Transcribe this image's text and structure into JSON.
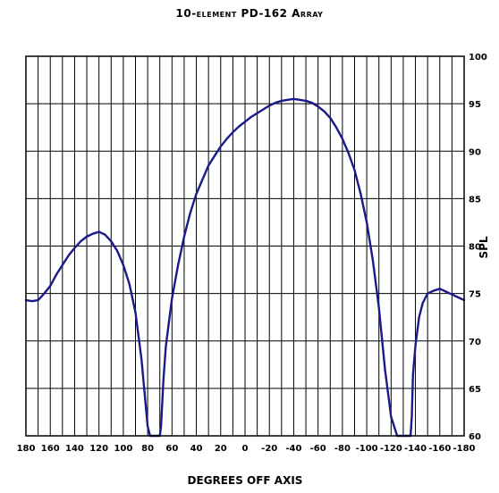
{
  "chart_data": {
    "type": "line",
    "title": "10-element PD-162 Array",
    "xlabel": "DEGREES OFF AXIS",
    "ylabel": "SPL",
    "x_tick_labels": [
      "180",
      "160",
      "140",
      "120",
      "100",
      "80",
      "60",
      "40",
      "20",
      "0",
      "-20",
      "-40",
      "-60",
      "-80",
      "-100",
      "-120",
      "-140",
      "-160",
      "-180"
    ],
    "y_tick_labels": [
      "60",
      "65",
      "70",
      "75",
      "80",
      "85",
      "90",
      "95",
      "100"
    ],
    "xlim": [
      180,
      -180
    ],
    "ylim": [
      60,
      100
    ],
    "x_grid_step": 10,
    "y_grid_step": 5,
    "grid": true,
    "line_color": "#1a1a8c",
    "series": [
      {
        "x": [
          180,
          175,
          170,
          165,
          160,
          155,
          150,
          145,
          140,
          135,
          130,
          125,
          120,
          115,
          110,
          105,
          100,
          95,
          90,
          85,
          80,
          78,
          76,
          74,
          73,
          72,
          71,
          70,
          69,
          67,
          65,
          62,
          60,
          55,
          50,
          45,
          40,
          35,
          30,
          25,
          20,
          15,
          10,
          5,
          0,
          -5,
          -10,
          -15,
          -20,
          -25,
          -30,
          -35,
          -40,
          -45,
          -50,
          -55,
          -60,
          -65,
          -70,
          -75,
          -80,
          -85,
          -90,
          -95,
          -100,
          -105,
          -110,
          -115,
          -120,
          -125,
          -128,
          -130,
          -132,
          -133,
          -134,
          -135,
          -136,
          -137,
          -138,
          -140,
          -143,
          -146,
          -150,
          -155,
          -160,
          -165,
          -170,
          -175,
          -180
        ],
        "y": [
          74.3,
          74.2,
          74.3,
          75.0,
          75.8,
          77.0,
          78.0,
          79.0,
          79.8,
          80.5,
          81.0,
          81.3,
          81.5,
          81.2,
          80.5,
          79.5,
          78.0,
          76.0,
          73.0,
          68.0,
          61.0,
          60.0,
          60.0,
          60.0,
          60.0,
          60.0,
          60.0,
          60.0,
          61.0,
          66.0,
          69.5,
          72.5,
          74.5,
          78.0,
          81.0,
          83.5,
          85.5,
          87.0,
          88.5,
          89.5,
          90.5,
          91.3,
          92.0,
          92.6,
          93.1,
          93.6,
          94.0,
          94.4,
          94.8,
          95.1,
          95.3,
          95.4,
          95.5,
          95.4,
          95.3,
          95.1,
          94.7,
          94.2,
          93.5,
          92.5,
          91.3,
          89.8,
          88.0,
          85.5,
          82.5,
          78.5,
          73.5,
          67.0,
          62.0,
          60.0,
          60.0,
          60.0,
          60.0,
          60.0,
          60.0,
          60.0,
          60.0,
          62.0,
          66.5,
          69.5,
          72.5,
          74.0,
          75.0,
          75.3,
          75.5,
          75.2,
          74.9,
          74.6,
          74.3
        ]
      }
    ]
  }
}
